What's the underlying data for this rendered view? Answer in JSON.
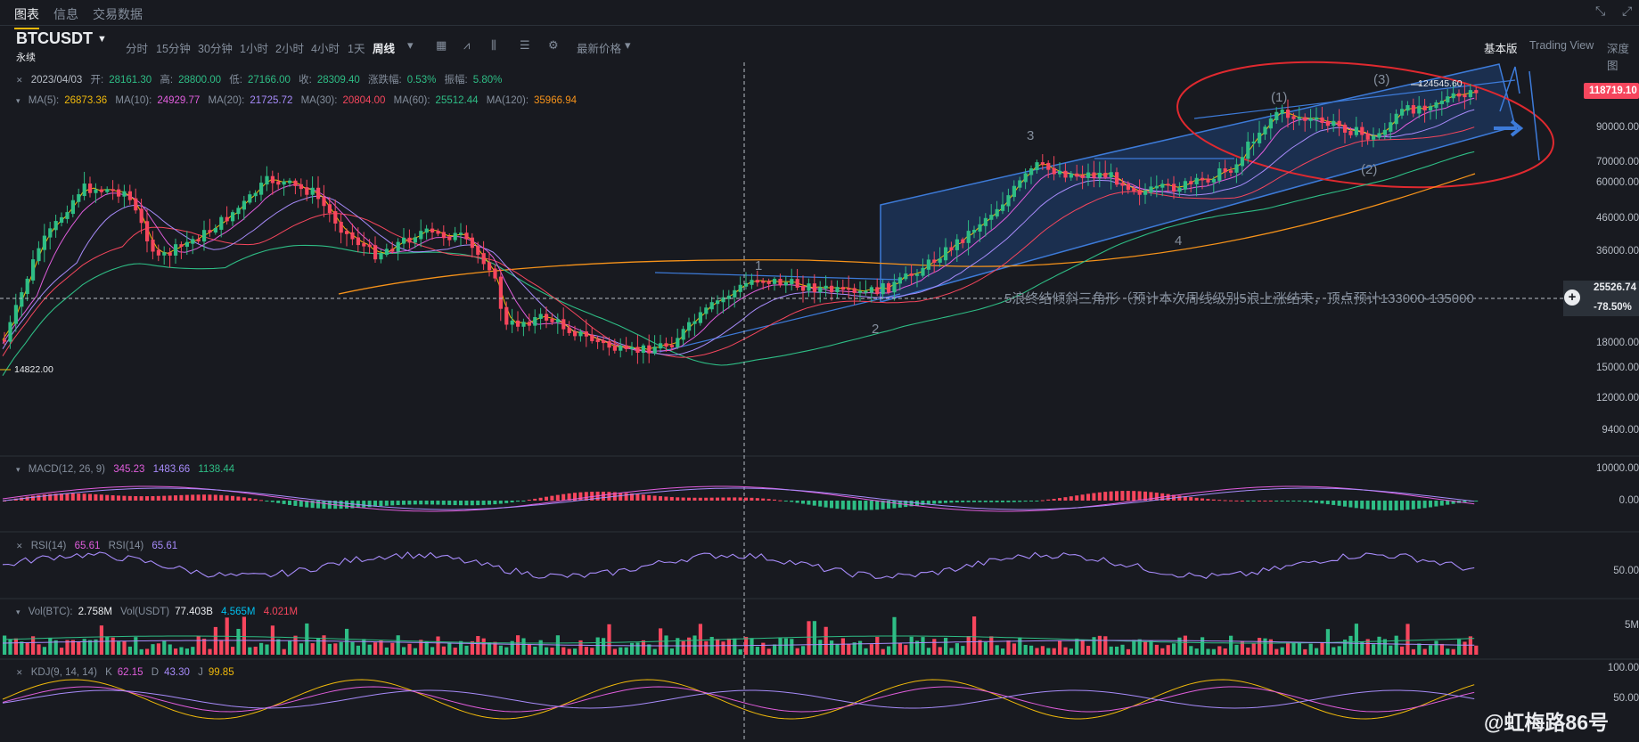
{
  "top_tabs": {
    "chart": "图表",
    "info": "信息",
    "trading_data": "交易数据"
  },
  "symbol": {
    "name": "BTCUSDT",
    "subtitle": "永续"
  },
  "timeframes": [
    "分时",
    "15分钟",
    "30分钟",
    "1小时",
    "2小时",
    "4小时",
    "1天",
    "周线"
  ],
  "active_timeframe": "周线",
  "latest_price_label": "最新价格",
  "views": {
    "basic": "基本版",
    "tradingview": "Trading View",
    "depth": "深度图"
  },
  "ohlc": {
    "date": "2023/04/03",
    "open_label": "开:",
    "open": "28161.30",
    "high_label": "高:",
    "high": "28800.00",
    "low_label": "低:",
    "low": "27166.00",
    "close_label": "收:",
    "close": "28309.40",
    "change_label": "涨跌幅:",
    "change": "0.53%",
    "amp_label": "振幅:",
    "amp": "5.80%"
  },
  "ma": [
    {
      "label": "MA(5):",
      "value": "26873.36",
      "color": "#f0b90b"
    },
    {
      "label": "MA(10):",
      "value": "24929.77",
      "color": "#e05ddc"
    },
    {
      "label": "MA(20):",
      "value": "21725.72",
      "color": "#a78bfa"
    },
    {
      "label": "MA(30):",
      "value": "20804.00",
      "color": "#f6465d"
    },
    {
      "label": "MA(60):",
      "value": "25512.44",
      "color": "#2ebd85"
    },
    {
      "label": "MA(120):",
      "value": "35966.94",
      "color": "#f7931a"
    }
  ],
  "price_axis": [
    "90000.00",
    "70000.00",
    "60000.00",
    "46000.00",
    "36000.00",
    "18000.00",
    "15000.00",
    "12000.00",
    "9400.00"
  ],
  "current_price": "118719.10",
  "crosshair": {
    "price": "25526.74",
    "pct": "-78.50%"
  },
  "low_marker": "14822.00",
  "high_marker": "124545.60",
  "annotations": {
    "wave1": "1",
    "wave2": "2",
    "wave3": "3",
    "wave4": "4",
    "sub1": "(1)",
    "sub2": "(2)",
    "sub3": "(3)",
    "note": "5浪终结倾斜三角形（预计本次周线级别5浪上涨结束，顶点预计133000-135000"
  },
  "macd": {
    "label": "MACD(12, 26, 9)",
    "dif": "345.23",
    "dea": "1483.66",
    "hist": "1138.44",
    "axis": [
      "10000.00",
      "0.00"
    ]
  },
  "rsi": {
    "label1": "RSI(14)",
    "value1": "65.61",
    "label2": "RSI(14)",
    "value2": "65.61",
    "axis": [
      "50.00"
    ]
  },
  "vol": {
    "btc_label": "Vol(BTC):",
    "btc": "2.758M",
    "usdt_label": "Vol(USDT)",
    "usdt": "77.403B",
    "ma1": "4.565M",
    "ma2": "4.021M",
    "axis": [
      "5M"
    ]
  },
  "kdj": {
    "label": "KDJ(9, 14, 14)",
    "k_label": "K",
    "k": "62.15",
    "d_label": "D",
    "d": "43.30",
    "j_label": "J",
    "j": "99.85",
    "axis": [
      "100.00",
      "50.00"
    ]
  },
  "watermark": "@虹梅路86号",
  "colors": {
    "up": "#2ebd85",
    "down": "#f6465d",
    "bg": "#181a20",
    "accent": "#f0b90b"
  }
}
